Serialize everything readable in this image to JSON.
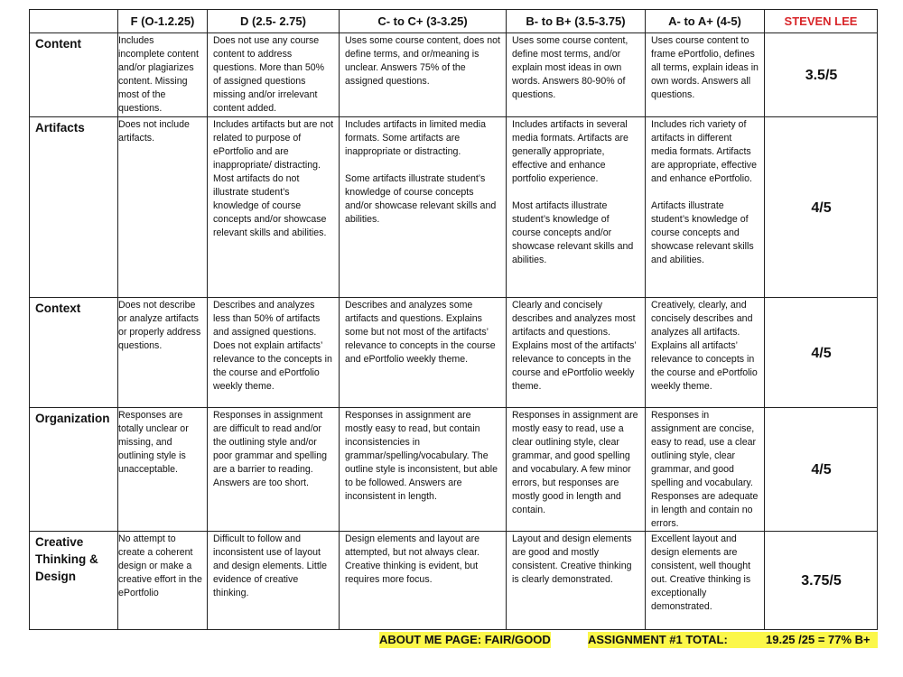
{
  "header": {
    "blank": "",
    "columns": [
      "F (O-1.2.25)",
      "D (2.5- 2.75)",
      "C- to C+ (3-3.25)",
      "B- to B+ (3.5-3.75)",
      "A- to A+ (4-5)"
    ],
    "student": "STEVEN LEE"
  },
  "rows": [
    {
      "criterion": "Content",
      "cells": [
        [
          "Includes incomplete content and/or plagiarizes content. Missing most of the questions."
        ],
        [
          "Does not use any course content to address questions. More than 50% of assigned questions missing and/or irrelevant content added."
        ],
        [
          "Uses some course content, does not define terms, and or/meaning is unclear. Answers 75% of the assigned questions."
        ],
        [
          "Uses some course content, define most terms, and/or explain most ideas in own words. Answers 80-90% of questions."
        ],
        [
          "Uses course content to frame ePortfolio, defines all terms, explain ideas in own words. Answers all questions."
        ]
      ],
      "score": "3.5/5"
    },
    {
      "criterion": "Artifacts",
      "cells": [
        [
          "Does not include artifacts."
        ],
        [
          "Includes artifacts but are not related to purpose of ePortfolio and are inappropriate/ distracting.  Most artifacts do not illustrate student’s knowledge of course concepts and/or showcase relevant skills and abilities."
        ],
        [
          "Includes artifacts in limited media formats. Some artifacts are inappropriate or distracting.",
          "Some artifacts illustrate student’s knowledge of course concepts and/or showcase relevant skills and abilities."
        ],
        [
          "Includes artifacts in several media formats. Artifacts are generally appropriate, effective and enhance portfolio experience.",
          "Most artifacts illustrate student’s knowledge of course concepts and/or showcase relevant skills and abilities."
        ],
        [
          "Includes rich variety of artifacts in different media formats. Artifacts are appropriate, effective and enhance ePortfolio.",
          "Artifacts illustrate student’s knowledge of course concepts and showcase relevant skills and abilities."
        ]
      ],
      "score": "4/5"
    },
    {
      "criterion": "Context",
      "cells": [
        [
          "Does not describe or analyze artifacts or properly address questions."
        ],
        [
          "Describes and analyzes less than 50% of artifacts and assigned questions. Does not explain artifacts’ relevance to the concepts in the course and ePortfolio weekly theme."
        ],
        [
          "Describes and analyzes some artifacts and questions. Explains some but not most of the artifacts’ relevance to  concepts in the course and ePortfolio weekly theme."
        ],
        [
          "Clearly and concisely describes and analyzes most artifacts and questions. Explains most of the artifacts’ relevance to concepts in the course and ePortfolio weekly theme."
        ],
        [
          "Creatively, clearly, and concisely describes and analyzes all artifacts. Explains all artifacts’ relevance to concepts in the course and ePortfolio weekly theme."
        ]
      ],
      "score": "4/5"
    },
    {
      "criterion": "Organization",
      "cells": [
        [
          "Responses are totally unclear or missing, and outlining style is unacceptable."
        ],
        [
          "Responses in assignment are difficult to read and/or the outlining style and/or poor grammar and spelling are a barrier to reading. Answers are too short."
        ],
        [
          "Responses in assignment are mostly easy to read, but contain inconsistencies in grammar/spelling/vocabulary. The outline style is inconsistent, but able to be followed. Answers are inconsistent in length."
        ],
        [
          "Responses in assignment are mostly easy to read, use a clear outlining style, clear grammar, and good spelling and vocabulary. A few minor errors, but responses are mostly good in length and contain."
        ],
        [
          "Responses in assignment are concise, easy to read, use a clear outlining style, clear grammar, and good spelling and vocabulary. Responses are adequate in length and contain no errors."
        ]
      ],
      "score": "4/5"
    },
    {
      "criterion": "Creative Thinking & Design",
      "cells": [
        [
          "No attempt to create a coherent design or make a creative effort in the ePortfolio"
        ],
        [
          "Difficult to follow and inconsistent use of layout and design elements. Little evidence of creative thinking."
        ],
        [
          "Design elements and layout are attempted, but not always clear. Creative thinking is evident, but requires more focus."
        ],
        [
          "Layout and design elements are good and mostly consistent. Creative thinking is clearly demonstrated."
        ],
        [
          "Excellent layout and design elements are consistent, well thought out. Creative thinking is exceptionally demonstrated."
        ]
      ],
      "score": "3.75/5"
    }
  ],
  "footer": {
    "about_me": "ABOUT ME PAGE: FAIR/GOOD",
    "total_label": "ASSIGNMENT #1 TOTAL:",
    "total_value": "19.25 /25 = 77% B+"
  },
  "colors": {
    "student_name": "#d8262a",
    "highlight": "#fbf74a"
  }
}
